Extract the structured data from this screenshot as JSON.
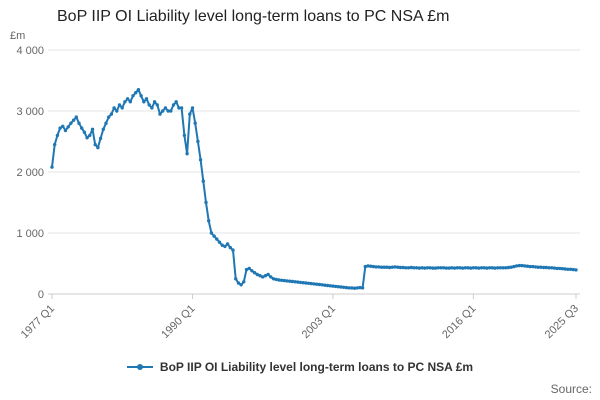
{
  "page": {
    "source_label": "Source:"
  },
  "chart_data": {
    "type": "line",
    "title": "BoP IIP OI Liability level long-term loans to PC NSA £m",
    "y_unit": "£m",
    "ylabel": "£m",
    "ylim": [
      0,
      4000
    ],
    "grid": "horizontal",
    "legend_position": "bottom",
    "x_frequency": "quarterly",
    "x_range": [
      "1977 Q1",
      "2025 Q3"
    ],
    "yticks": [
      {
        "label": "0",
        "value": 0
      },
      {
        "label": "1 000",
        "value": 1000
      },
      {
        "label": "2 000",
        "value": 2000
      },
      {
        "label": "3 000",
        "value": 3000
      },
      {
        "label": "4 000",
        "value": 4000
      }
    ],
    "xticks": [
      {
        "label": "1977 Q1",
        "index": 0
      },
      {
        "label": "1990 Q1",
        "index": 52
      },
      {
        "label": "2003 Q1",
        "index": 104
      },
      {
        "label": "2016 Q1",
        "index": 156
      },
      {
        "label": "2025 Q3",
        "index": 194
      }
    ],
    "series": [
      {
        "name": "BoP IIP OI Liability level long-term loans to PC NSA £m",
        "color": "#1f77b4",
        "marker": "circle",
        "values": [
          2080,
          2450,
          2600,
          2720,
          2750,
          2680,
          2740,
          2800,
          2850,
          2900,
          2800,
          2720,
          2650,
          2560,
          2600,
          2700,
          2450,
          2400,
          2550,
          2700,
          2800,
          2900,
          2950,
          3050,
          3000,
          3100,
          3050,
          3150,
          3200,
          3150,
          3250,
          3300,
          3350,
          3250,
          3150,
          3200,
          3100,
          3050,
          3150,
          3100,
          2950,
          3000,
          3050,
          3000,
          3000,
          3100,
          3150,
          3050,
          3050,
          2600,
          2300,
          2950,
          3050,
          2800,
          2500,
          2200,
          1850,
          1500,
          1200,
          1000,
          950,
          900,
          850,
          800,
          780,
          820,
          760,
          720,
          250,
          180,
          150,
          200,
          400,
          420,
          380,
          350,
          320,
          300,
          280,
          300,
          320,
          280,
          250,
          240,
          230,
          225,
          220,
          215,
          210,
          205,
          200,
          195,
          190,
          185,
          180,
          175,
          170,
          165,
          160,
          155,
          150,
          145,
          140,
          135,
          130,
          125,
          120,
          115,
          110,
          105,
          100,
          100,
          95,
          100,
          105,
          100,
          450,
          460,
          455,
          450,
          445,
          445,
          440,
          440,
          440,
          435,
          440,
          445,
          440,
          435,
          435,
          430,
          430,
          435,
          430,
          430,
          425,
          430,
          425,
          430,
          430,
          425,
          425,
          430,
          430,
          430,
          425,
          425,
          430,
          425,
          430,
          430,
          425,
          430,
          430,
          425,
          430,
          430,
          425,
          430,
          430,
          425,
          430,
          430,
          425,
          430,
          430,
          430,
          430,
          435,
          440,
          450,
          460,
          465,
          465,
          460,
          455,
          450,
          450,
          445,
          440,
          440,
          435,
          435,
          430,
          430,
          425,
          420,
          420,
          415,
          410,
          405,
          405,
          400,
          395
        ]
      }
    ]
  }
}
